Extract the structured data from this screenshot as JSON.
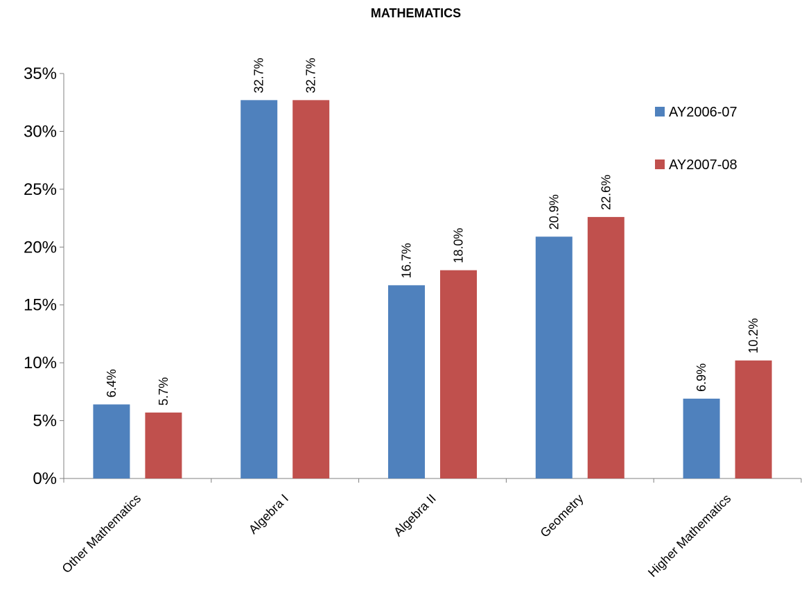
{
  "chart_data": {
    "type": "bar",
    "title": "MATHEMATICS",
    "xlabel": "",
    "ylabel": "",
    "categories": [
      "Other Mathematics",
      "Algebra I",
      "Algebra II",
      "Geometry",
      "Higher Mathematics"
    ],
    "series": [
      {
        "name": "AY2006-07",
        "color": "#4F81BD",
        "values": [
          6.4,
          32.7,
          16.7,
          20.9,
          6.9
        ],
        "labels": [
          "6.4%",
          "32.7%",
          "16.7%",
          "20.9%",
          "6.9%"
        ]
      },
      {
        "name": "AY2007-08",
        "color": "#C0504D",
        "values": [
          5.7,
          32.7,
          18.0,
          22.6,
          10.2
        ],
        "labels": [
          "5.7%",
          "32.7%",
          "18.0%",
          "22.6%",
          "10.2%"
        ]
      }
    ],
    "ylim": [
      0,
      35
    ],
    "yticks": [
      0,
      5,
      10,
      15,
      20,
      25,
      30,
      35
    ],
    "ytick_labels": [
      "0%",
      "5%",
      "10%",
      "15%",
      "20%",
      "25%",
      "30%",
      "35%"
    ],
    "grid": false,
    "legend_position": "right"
  }
}
